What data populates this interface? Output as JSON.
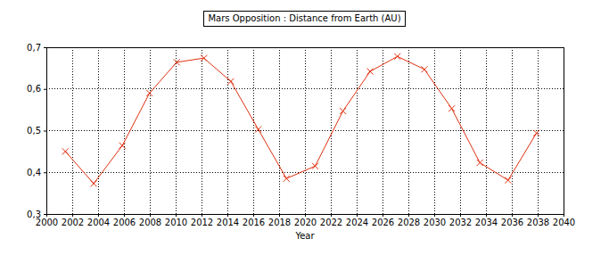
{
  "chart_data": {
    "type": "line",
    "title": "Mars Opposition : Distance from Earth (AU)",
    "x_label": "Year",
    "x": [
      2001.47,
      2003.66,
      2005.87,
      2007.98,
      2010.08,
      2012.18,
      2014.27,
      2016.39,
      2018.57,
      2020.79,
      2022.94,
      2025.04,
      2027.15,
      2029.24,
      2031.35,
      2033.53,
      2035.71,
      2037.91
    ],
    "values": [
      0.45,
      0.373,
      0.464,
      0.59,
      0.664,
      0.674,
      0.618,
      0.503,
      0.385,
      0.415,
      0.547,
      0.642,
      0.678,
      0.647,
      0.553,
      0.423,
      0.381,
      0.494
    ],
    "color": "#e03010",
    "marker": "x",
    "grid": true,
    "xlim": [
      2000,
      2040
    ],
    "xticks": [
      2000,
      2002,
      2004,
      2006,
      2008,
      2010,
      2012,
      2014,
      2016,
      2018,
      2020,
      2022,
      2024,
      2026,
      2028,
      2030,
      2032,
      2034,
      2036,
      2038,
      2040
    ],
    "ylim": [
      0.3,
      0.7
    ],
    "yticks": [
      {
        "value": 0.3,
        "label": "0,3"
      },
      {
        "value": 0.4,
        "label": "0,4"
      },
      {
        "value": 0.5,
        "label": "0,5"
      },
      {
        "value": 0.6,
        "label": "0,6"
      },
      {
        "value": 0.7,
        "label": "0,7"
      }
    ]
  }
}
